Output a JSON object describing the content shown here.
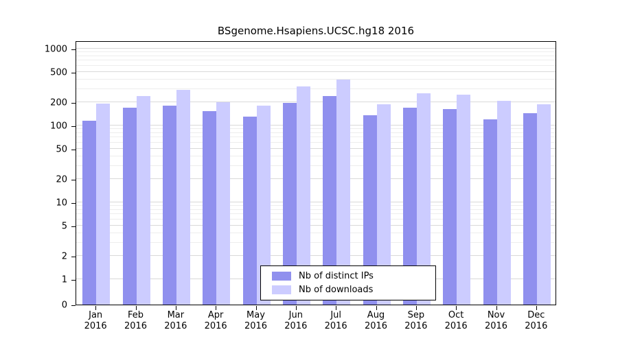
{
  "chart": {
    "title": "BSgenome.Hsapiens.UCSC.hg18 2016"
  },
  "chart_data": {
    "type": "bar",
    "title": "BSgenome.Hsapiens.UCSC.hg18 2016",
    "categories": [
      "Jan 2016",
      "Feb 2016",
      "Mar 2016",
      "Apr 2016",
      "May 2016",
      "Jun 2016",
      "Jul 2016",
      "Aug 2016",
      "Sep 2016",
      "Oct 2016",
      "Nov 2016",
      "Dec 2016"
    ],
    "series": [
      {
        "name": "Nb of distinct IPs",
        "color": "#9090ee",
        "values": [
          115,
          170,
          180,
          155,
          130,
          196,
          240,
          135,
          170,
          165,
          120,
          145
        ]
      },
      {
        "name": "Nb of downloads",
        "color": "#ccccff",
        "values": [
          195,
          240,
          290,
          200,
          183,
          320,
          400,
          190,
          265,
          250,
          208,
          188
        ]
      }
    ],
    "yscale": "log",
    "yticks": [
      0,
      1,
      2,
      5,
      10,
      20,
      50,
      100,
      200,
      500,
      1000
    ],
    "ylim": [
      0,
      1200
    ],
    "grid": true,
    "legend_position": "bottom-center-inside",
    "grid_major_color": "#d9d9d9",
    "grid_minor_color": "#ededed"
  }
}
